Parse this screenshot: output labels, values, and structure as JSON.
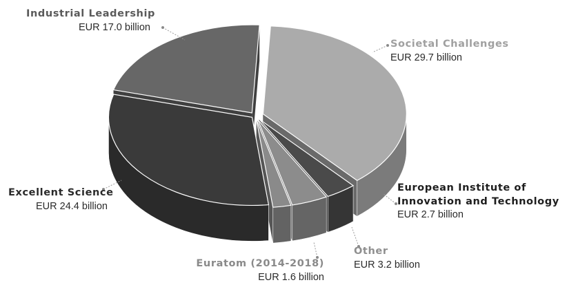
{
  "chart_data": {
    "type": "pie",
    "style": "3d-exploded",
    "slices": [
      {
        "label": "Societal Challenges",
        "amount_label": "EUR 29.7 billion",
        "value": 29.7,
        "color": "#ababab",
        "name_color": "#a0a0a0"
      },
      {
        "label": "European Institute of Innovation and Technology",
        "label_lines": [
          "European Institute of",
          "Innovation and Technology"
        ],
        "amount_label": "EUR 2.7 billion",
        "value": 2.7,
        "color": "#4a4a4a",
        "name_color": "#1e1e1e"
      },
      {
        "label": "Other",
        "amount_label": "EUR 3.2 billion",
        "value": 3.2,
        "color": "#8c8c8c",
        "name_color": "#8f8f8f"
      },
      {
        "label": "Euratom (2014-2018)",
        "amount_label": "EUR 1.6 billion",
        "value": 1.6,
        "color": "#8a8a8a",
        "name_color": "#8a8a8a"
      },
      {
        "label": "Excellent Science",
        "amount_label": "EUR 24.4 billion",
        "value": 24.4,
        "color": "#3a3a3a",
        "name_color": "#2a2a2a"
      },
      {
        "label": "Industrial Leadership",
        "amount_label": "EUR 17.0 billion",
        "value": 17.0,
        "color": "#676767",
        "name_color": "#5a5a5a"
      }
    ]
  }
}
